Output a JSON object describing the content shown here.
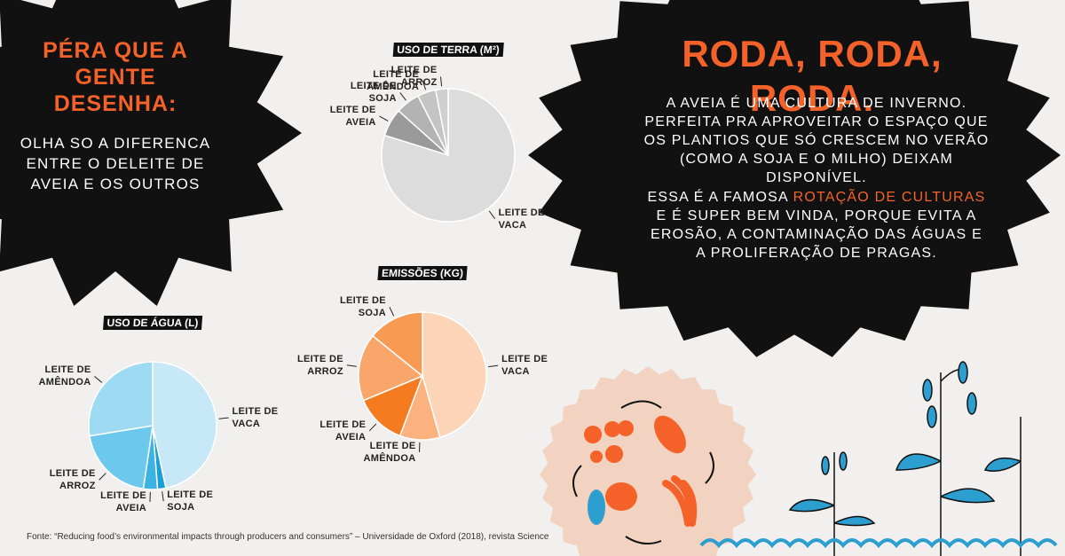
{
  "left_panel": {
    "heading": "PÉRA QUE A GENTE DESENHA:",
    "text": "OLHA SO A DIFERENCA ENTRE O DELEITE DE AVEIA E OS OUTROS"
  },
  "right_panel": {
    "heading": "RODA, RODA, RODA.",
    "paragraph1": "A AVEIA É UMA CULTURA DE INVERNO. PERFEITA PRA APROVEITAR O ESPAÇO QUE OS PLANTIOS QUE SÓ CRESCEM NO VERÃO (COMO A SOJA E O MILHO) DEIXAM DISPONÍVEL.",
    "paragraph2_start": "ESSA É A FAMOSA",
    "paragraph2_highlight": "ROTAÇÃO DE CULTURAS",
    "paragraph2_end": "E É SUPER BEM VINDA, PORQUE EVITA A EROSÃO, A CONTAMINAÇÃO DAS ÁGUAS E A PROLIFERAÇÃO DE PRAGAS."
  },
  "source": "Fonte: “Reducing food’s environmental impacts through producers and consumers” – Universidade de Oxford (2018), revista Science",
  "chart_data": [
    {
      "type": "pie",
      "title": "USO DE TERRA (M²)",
      "categories": [
        "LEITE DE VACA",
        "LEITE DE AVEIA",
        "LEITE DE SOJA",
        "LEITE DE AMÊNDOA",
        "LEITE DE ARROZ"
      ],
      "values": [
        8.95,
        0.76,
        0.66,
        0.5,
        0.34
      ],
      "colors": [
        "#dcdcdc",
        "#9a9a9a",
        "#b3b3b3",
        "#c4c4c4",
        "#cfcfcf"
      ]
    },
    {
      "type": "pie",
      "title": "EMISSÕES (KG)",
      "categories": [
        "LEITE DE VACA",
        "LEITE DE AMÊNDOA",
        "LEITE DE AVEIA",
        "LEITE DE ARROZ",
        "LEITE DE SOJA"
      ],
      "values": [
        3.15,
        0.7,
        0.9,
        1.18,
        0.98
      ],
      "colors": [
        "#fcd5b8",
        "#fbb27e",
        "#f47b20",
        "#f8a66a",
        "#f99a52"
      ]
    },
    {
      "type": "pie",
      "title": "USO DE ÁGUA (L)",
      "categories": [
        "LEITE DE VACA",
        "LEITE DE SOJA",
        "LEITE DE AVEIA",
        "LEITE DE ARROZ",
        "LEITE DE AMÊNDOA"
      ],
      "values": [
        628,
        28,
        48,
        270,
        371
      ],
      "colors": [
        "#c7e8f6",
        "#1a9fd6",
        "#3cb3e3",
        "#6cc8ec",
        "#9edaf2"
      ]
    }
  ]
}
